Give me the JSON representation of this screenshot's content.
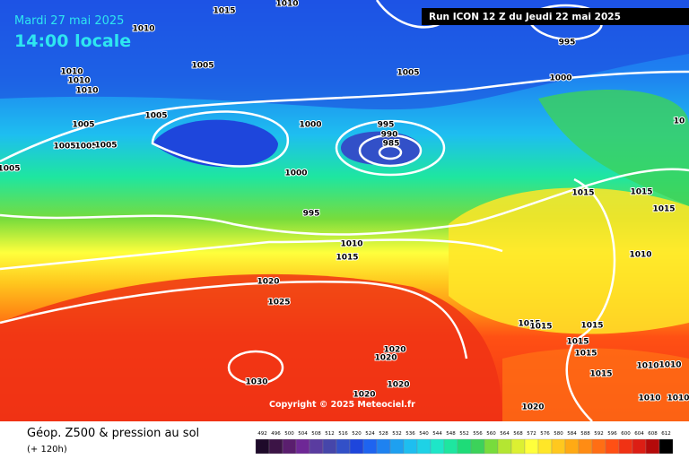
{
  "header": {
    "date": "Mardi 27 mai 2025",
    "time": "14:00 locale",
    "run": "Run ICON 12 Z du Jeudi 22 mai 2025"
  },
  "footer": {
    "title": "Géop. Z500 & pression au sol",
    "lead": "(+ 120h)"
  },
  "copyright": "Copyright © 2025 Meteociel.fr",
  "isobar_labels": [
    "1015",
    "1010",
    "1010",
    "1005",
    "1005",
    "1000",
    "995",
    "1010",
    "1010",
    "1010",
    "1005",
    "1000",
    "995",
    "990",
    "985",
    "1005",
    "1005",
    "1005",
    "1005",
    "1005",
    "1000",
    "995",
    "1010",
    "1015",
    "1020",
    "1025",
    "1030",
    "1020",
    "1020",
    "1020",
    "1020",
    "1020",
    "1015",
    "1015",
    "1015",
    "1010",
    "1015",
    "1015",
    "1015",
    "1015",
    "1015",
    "1015",
    "1010",
    "1010",
    "1010",
    "1010",
    "10"
  ],
  "color_scale": {
    "labels": [
      492,
      496,
      500,
      504,
      508,
      512,
      516,
      520,
      524,
      528,
      532,
      536,
      540,
      544,
      548,
      552,
      556,
      560,
      564,
      568,
      572,
      576,
      580,
      584,
      588,
      592,
      596,
      600,
      604,
      608,
      612
    ],
    "colors": [
      "#1e0a2a",
      "#3c1446",
      "#5a1e6e",
      "#6e2896",
      "#5a3ca0",
      "#4646aa",
      "#3250c8",
      "#1e46dc",
      "#1e64f0",
      "#1e82f0",
      "#1ea0f0",
      "#1ebef0",
      "#1ed2e6",
      "#1ee6c8",
      "#1ee6a0",
      "#1edc78",
      "#3cd25a",
      "#78dc3c",
      "#b4e632",
      "#dcf032",
      "#ffff3c",
      "#ffe628",
      "#ffc81e",
      "#ffaa14",
      "#ff8c14",
      "#ff6e14",
      "#ff5014",
      "#f03214",
      "#dc1e14",
      "#b40a0a",
      "#000000"
    ]
  }
}
